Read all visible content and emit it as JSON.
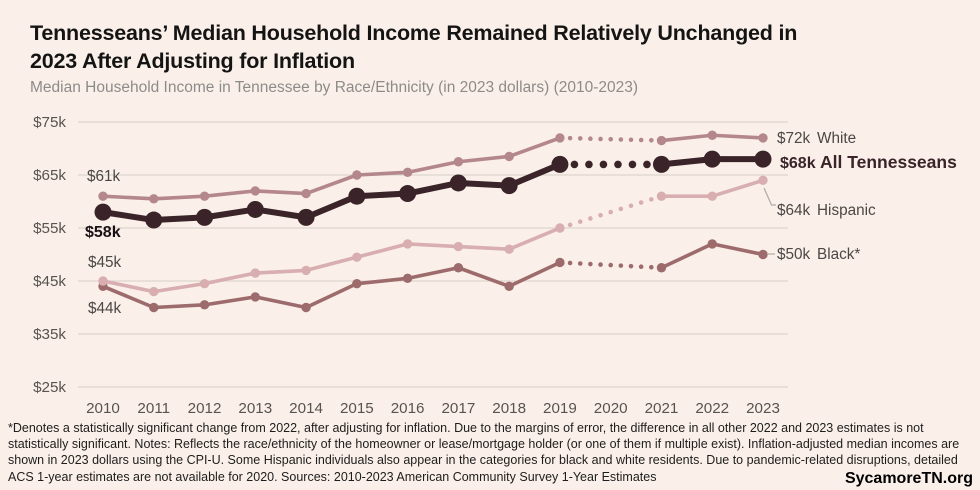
{
  "header": {
    "title_lines": [
      "Tennesseans’ Median Household Income Remained Relatively Unchanged in",
      "2023 After Adjusting for Inflation"
    ],
    "subtitle": "Median Household Income in Tennessee by Race/Ethnicity (in 2023 dollars) (2010-2023)"
  },
  "chart_data": {
    "type": "line",
    "title": "Tennesseans’ Median Household Income Remained Relatively Unchanged in 2023 After Adjusting for Inflation",
    "subtitle": "Median Household Income in Tennessee by Race/Ethnicity (in 2023 dollars) (2010-2023)",
    "x": [
      2010,
      2011,
      2012,
      2013,
      2014,
      2015,
      2016,
      2017,
      2018,
      2019,
      2020,
      2021,
      2022,
      2023
    ],
    "y_unit": "thousands of 2023 dollars",
    "ylim": [
      25,
      75
    ],
    "y_ticks": [
      {
        "value": 75,
        "label": "$75k"
      },
      {
        "value": 65,
        "label": "$65k"
      },
      {
        "value": 55,
        "label": "$55k"
      },
      {
        "value": 45,
        "label": "$45k"
      },
      {
        "value": 35,
        "label": "$35k"
      },
      {
        "value": 25,
        "label": "$25k"
      }
    ],
    "grid": true,
    "legend_position": "right-edge-labels",
    "gap_note": "2020 values missing (detailed ACS 1-year estimates unavailable); gap drawn as dotted segment",
    "series": [
      {
        "id": "black",
        "name": "Black*",
        "color": "#9d6b6b",
        "values": [
          44,
          40,
          40.5,
          42,
          40,
          44.5,
          45.5,
          47.5,
          44,
          48.5,
          null,
          47.5,
          52,
          50
        ],
        "end_label": {
          "value": "$50k",
          "name": "Black*"
        }
      },
      {
        "id": "hispanic",
        "name": "Hispanic",
        "color": "#d8aeb0",
        "values": [
          45,
          43,
          44.5,
          46.5,
          47,
          49.5,
          52,
          51.5,
          51,
          55,
          null,
          61,
          61,
          64
        ],
        "end_label": {
          "value": "$64k",
          "name": "Hispanic"
        }
      },
      {
        "id": "white",
        "name": "White",
        "color": "#b4878c",
        "values": [
          61,
          60.5,
          61,
          62,
          61.5,
          65,
          65.5,
          67.5,
          68.5,
          72,
          null,
          71.5,
          72.5,
          72
        ],
        "end_label": {
          "value": "$72k",
          "name": "White"
        }
      },
      {
        "id": "all",
        "name": "All Tennesseans",
        "color": "#3a2429",
        "emphasis": true,
        "values": [
          58,
          56.5,
          57,
          58.5,
          57,
          61,
          61.5,
          63.5,
          63,
          67,
          null,
          67,
          68,
          68
        ],
        "end_label": {
          "value": "$68k",
          "name": "All Tennesseans"
        }
      }
    ],
    "annotations": [
      {
        "text": "$61k",
        "series": "white",
        "year": 2010,
        "bold": false,
        "color": "#4b4744"
      },
      {
        "text": "$58k",
        "series": "all",
        "year": 2010,
        "bold": true,
        "color": "#1a1114"
      },
      {
        "text": "$45k",
        "series": "hispanic",
        "year": 2010,
        "bold": false,
        "color": "#4b4744"
      },
      {
        "text": "$44k",
        "series": "black",
        "year": 2010,
        "bold": false,
        "color": "#4b4744"
      }
    ]
  },
  "colors": {
    "background": "#faf0e9",
    "gridline": "#ded5ce",
    "axis_text": "#57534f",
    "end_label_text": "#4b4744",
    "callout_line": "#b3aaa4",
    "title_text": "#141414",
    "subtitle_text": "#8d8b88",
    "footnote_text": "#1d1d1d"
  },
  "footer": {
    "note": "*Denotes a statistically significant change from 2022, after adjusting for inflation. Due to the margins of error, the difference in all other 2022 and 2023 estimates is not statistically significant. Notes: Reflects the race/ethnicity of the homeowner or lease/mortgage holder (or one of them if multiple exist). Inflation-adjusted median incomes are shown in 2023 dollars using the CPI-U. Some Hispanic individuals also appear in the categories for black and white residents. Due to pandemic-related disruptions, detailed ACS 1-year estimates are not available for 2020. Sources: 2010-2023 American Community Survey 1-Year Estimates",
    "brand": "SycamoreTN.org"
  }
}
